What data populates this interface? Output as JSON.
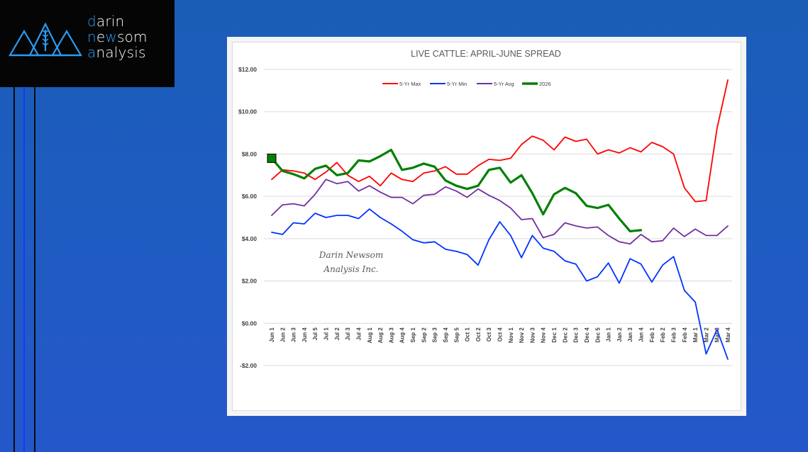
{
  "logo": {
    "lines": [
      {
        "accent": "d",
        "rest": "arin"
      },
      {
        "accent": "n",
        "rest": "ewsom",
        "accent_mid": "w"
      },
      {
        "accent": "a",
        "rest": "nalysis"
      }
    ],
    "line1_a": "d",
    "line1_b": "arin",
    "line2_a": "n",
    "line2_b": "e",
    "line2_c": "w",
    "line2_d": "som",
    "line3_a": "a",
    "line3_b": "nalysis",
    "icon": "mountains-wheat-icon",
    "accent_color": "#2a9df4"
  },
  "chart_data": {
    "type": "line",
    "title": "LIVE CATTLE: APRIL-JUNE SPREAD",
    "xlabel": "",
    "ylabel": "",
    "ylim": [
      -2,
      12
    ],
    "ytick_step": 2,
    "ytick_labels": [
      "-$2.00",
      "$0.00",
      "$2.00",
      "$4.00",
      "$6.00",
      "$8.00",
      "$10.00",
      "$12.00"
    ],
    "grid": true,
    "legend_position": "top-center",
    "watermark": [
      "Darin Newsom",
      "Analysis Inc."
    ],
    "categories": [
      "Jun 1",
      "Jun 2",
      "Jun 3",
      "Jun 4",
      "Jul 5",
      "Jul 1",
      "Jul 2",
      "Jul 3",
      "Jul 4",
      "Aug 1",
      "Aug 2",
      "Aug 3",
      "Aug 4",
      "Sep 1",
      "Sep 2",
      "Sep 3",
      "Sep 4",
      "Sep 5",
      "Oct 1",
      "Oct 2",
      "Oct 3",
      "Oct 4",
      "Nov 1",
      "Nov 2",
      "Nov 3",
      "Nov 4",
      "Dec 1",
      "Dec 2",
      "Dec 3",
      "Dec 4",
      "Dec 5",
      "Jan 1",
      "Jan 2",
      "Jan 3",
      "Jan 4",
      "Feb 1",
      "Feb 2",
      "Feb 3",
      "Feb 4",
      "Mar 1",
      "Mar 2",
      "Mar 3",
      "Mar 4"
    ],
    "series": [
      {
        "name": "5-Yr Max",
        "color": "#ff0000",
        "values": [
          6.8,
          7.25,
          7.2,
          7.1,
          6.8,
          7.15,
          7.6,
          7.0,
          6.7,
          6.95,
          6.5,
          7.1,
          6.8,
          6.7,
          7.1,
          7.2,
          7.4,
          7.05,
          7.05,
          7.45,
          7.75,
          7.7,
          7.8,
          8.45,
          8.85,
          8.65,
          8.2,
          8.8,
          8.6,
          8.7,
          8.0,
          8.2,
          8.05,
          8.3,
          8.1,
          8.55,
          8.35,
          8.0,
          6.4,
          5.75,
          5.8,
          9.2,
          11.5
        ]
      },
      {
        "name": "5-Yr Min",
        "color": "#0033ff",
        "values": [
          4.3,
          4.2,
          4.75,
          4.7,
          5.2,
          5.0,
          5.1,
          5.1,
          4.95,
          5.4,
          5.0,
          4.7,
          4.35,
          3.95,
          3.8,
          3.85,
          3.5,
          3.4,
          3.25,
          2.75,
          3.95,
          4.8,
          4.15,
          3.1,
          4.15,
          3.55,
          3.4,
          2.95,
          2.8,
          2.0,
          2.2,
          2.85,
          1.9,
          3.05,
          2.8,
          1.95,
          2.75,
          3.15,
          1.55,
          1.0,
          -1.45,
          -0.3,
          -1.7
        ]
      },
      {
        "name": "5-Yr Avg",
        "color": "#7030a0",
        "values": [
          5.1,
          5.6,
          5.65,
          5.55,
          6.1,
          6.8,
          6.6,
          6.7,
          6.25,
          6.5,
          6.2,
          5.95,
          5.95,
          5.65,
          6.05,
          6.1,
          6.45,
          6.25,
          5.95,
          6.35,
          6.05,
          5.8,
          5.45,
          4.9,
          4.95,
          4.05,
          4.2,
          4.75,
          4.6,
          4.5,
          4.55,
          4.15,
          3.85,
          3.75,
          4.2,
          3.85,
          3.9,
          4.5,
          4.1,
          4.45,
          4.15,
          4.15,
          4.6
        ]
      },
      {
        "name": "2026",
        "color": "#008000",
        "start_marker": "square",
        "values": [
          7.8,
          7.2,
          7.05,
          6.85,
          7.3,
          7.45,
          7.0,
          7.1,
          7.7,
          7.65,
          7.9,
          8.2,
          7.25,
          7.35,
          7.55,
          7.4,
          6.75,
          6.5,
          6.35,
          6.5,
          7.25,
          7.35,
          6.65,
          7.0,
          6.15,
          5.15,
          6.1,
          6.4,
          6.15,
          5.55,
          5.45,
          5.6,
          4.95,
          4.35,
          4.4
        ]
      }
    ]
  }
}
